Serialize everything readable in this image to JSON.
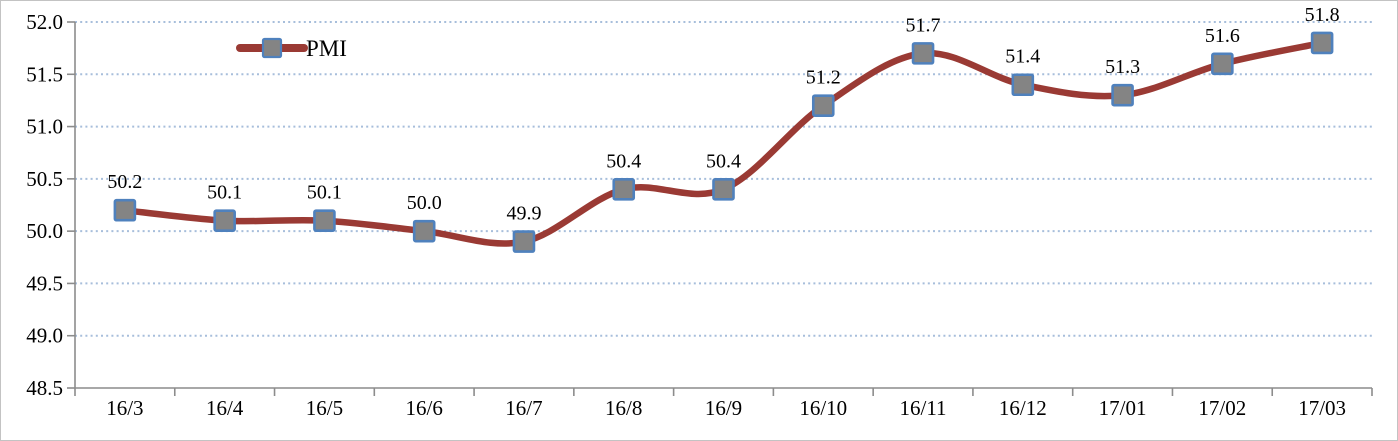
{
  "chart_data": {
    "type": "line",
    "title": "",
    "xlabel": "",
    "ylabel": "",
    "legend": {
      "label": "PMI",
      "position": "top-inside-left"
    },
    "categories": [
      "16/3",
      "16/4",
      "16/5",
      "16/6",
      "16/7",
      "16/8",
      "16/9",
      "16/10",
      "16/11",
      "16/12",
      "17/01",
      "17/02",
      "17/03"
    ],
    "series": [
      {
        "name": "PMI",
        "values": [
          50.2,
          50.1,
          50.1,
          50.0,
          49.9,
          50.4,
          50.4,
          51.2,
          51.7,
          51.4,
          51.3,
          51.6,
          51.8
        ]
      }
    ],
    "data_labels": [
      "50.2",
      "50.1",
      "50.1",
      "50.0",
      "49.9",
      "50.4",
      "50.4",
      "51.2",
      "51.7",
      "51.4",
      "51.3",
      "51.6",
      "51.8"
    ],
    "y_ticks": [
      "52.0",
      "51.5",
      "51.0",
      "50.5",
      "50.0",
      "49.5",
      "49.0",
      "48.5"
    ],
    "y_tick_values": [
      52.0,
      51.5,
      51.0,
      50.5,
      50.0,
      49.5,
      49.0,
      48.5
    ],
    "ylim": [
      48.5,
      52.0
    ],
    "grid": "horizontal-dotted",
    "line_smooth": true,
    "marker_shape": "square",
    "colors": {
      "line": "#9a3a34",
      "marker_fill": "#848484",
      "marker_border": "#4f81bd",
      "gridline": "#a7bedb",
      "axis": "#8c8c8c",
      "text": "#000000",
      "background": "#ffffff"
    }
  }
}
